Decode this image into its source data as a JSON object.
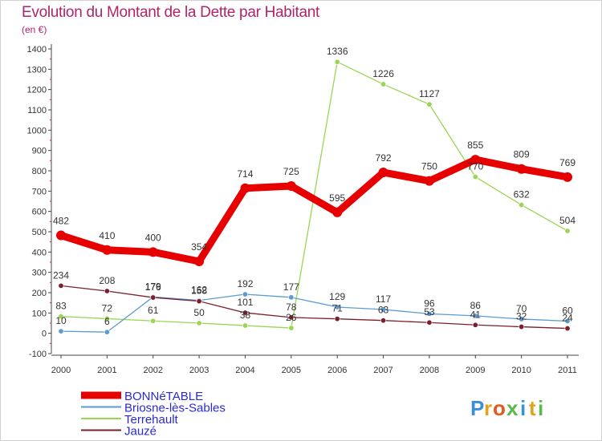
{
  "title": "Evolution du Montant de la Dette par Habitant",
  "unit": "(en €)",
  "logo": {
    "letters": [
      "P",
      "r",
      "o",
      "x",
      "i",
      "t",
      "i"
    ],
    "colors": [
      "#3a8fd6",
      "#e2a21c",
      "#e25a1c",
      "#5bb84a",
      "#3a8fd6",
      "#e2a21c",
      "#5bb84a"
    ]
  },
  "chart_data": {
    "type": "line",
    "title": "Evolution du Montant de la Dette par Habitant",
    "ylabel": "(en €)",
    "x": [
      "2000",
      "2001",
      "2002",
      "2003",
      "2004",
      "2005",
      "2006",
      "2007",
      "2008",
      "2009",
      "2010",
      "2011"
    ],
    "ylim": [
      -100,
      1400
    ],
    "yticks": [
      -100,
      0,
      100,
      200,
      300,
      400,
      500,
      600,
      700,
      800,
      900,
      1000,
      1100,
      1200,
      1300,
      1400
    ],
    "grid": false,
    "legend_position": "bottom-left",
    "series": [
      {
        "name": "BONNéTABLE",
        "color": "#e60000",
        "values": [
          482,
          410,
          400,
          354,
          714,
          725,
          595,
          792,
          750,
          855,
          809,
          769
        ],
        "labels": [
          "482",
          "410",
          "400",
          "354",
          "714",
          "725",
          "595",
          "792",
          "750",
          "855",
          "809",
          "769"
        ]
      },
      {
        "name": "Briosne-lès-Sables",
        "color": "#5a9bd4",
        "values": [
          10,
          6,
          179,
          162,
          192,
          177,
          129,
          117,
          96,
          86,
          70,
          60
        ],
        "labels": [
          "10",
          "6",
          "179",
          "162",
          "192",
          "177",
          "129",
          "117",
          "96",
          "86",
          "70",
          "60"
        ]
      },
      {
        "name": "Terrehault",
        "color": "#9ad654",
        "values": [
          83,
          72,
          61,
          50,
          38,
          26,
          1336,
          1226,
          1127,
          770,
          632,
          504
        ],
        "labels": [
          "83",
          "72",
          "61",
          "50",
          "38",
          "26",
          "1336",
          "1226",
          "1127",
          "770",
          "632",
          "504"
        ]
      },
      {
        "name": "Jauzé",
        "color": "#7a1f2b",
        "values": [
          234,
          208,
          176,
          158,
          101,
          78,
          71,
          63,
          53,
          41,
          32,
          24
        ],
        "labels": [
          "234",
          "208",
          "176",
          "158",
          "101",
          "78",
          "71",
          "63",
          "53",
          "41",
          "32",
          "24"
        ]
      }
    ]
  }
}
